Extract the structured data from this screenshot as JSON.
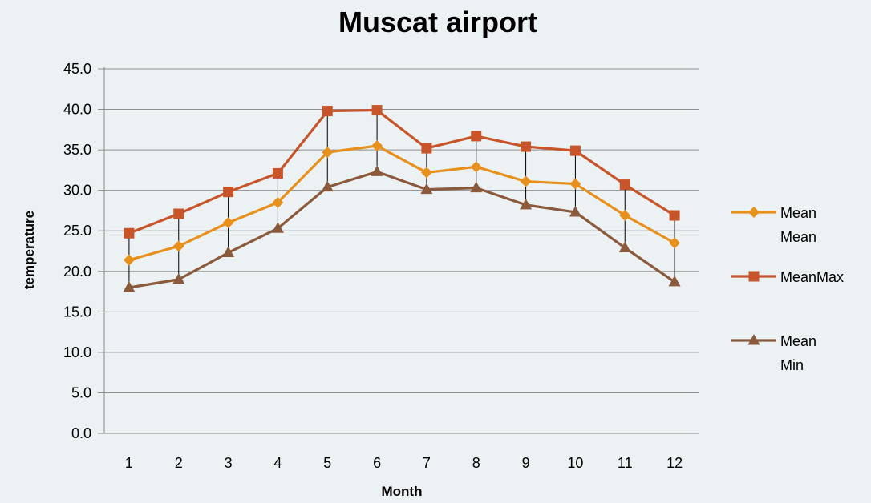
{
  "chart_data": {
    "type": "line",
    "title": "Muscat airport",
    "xlabel": "Month",
    "ylabel": "temperature",
    "categories": [
      "1",
      "2",
      "3",
      "4",
      "5",
      "6",
      "7",
      "8",
      "9",
      "10",
      "11",
      "12"
    ],
    "ylim": [
      0,
      45
    ],
    "yticks": [
      "0.0",
      "5.0",
      "10.0",
      "15.0",
      "20.0",
      "25.0",
      "30.0",
      "35.0",
      "40.0",
      "45.0"
    ],
    "grid": true,
    "legend_position": "right",
    "high_low_lines": true,
    "series": [
      {
        "name": "Mean Mean",
        "legend_lines": [
          "Mean",
          "Mean"
        ],
        "color": "#e8901c",
        "marker": "diamond",
        "values": [
          21.4,
          23.1,
          26.0,
          28.5,
          34.7,
          35.5,
          32.2,
          32.9,
          31.1,
          30.8,
          26.9,
          23.5
        ]
      },
      {
        "name": "MeanMax",
        "legend_lines": [
          "MeanMax"
        ],
        "color": "#c8552a",
        "marker": "square",
        "values": [
          24.7,
          27.1,
          29.8,
          32.1,
          39.8,
          39.9,
          35.2,
          36.7,
          35.4,
          34.9,
          30.7,
          26.9
        ]
      },
      {
        "name": "Mean Min",
        "legend_lines": [
          "Mean",
          "Min"
        ],
        "color": "#8b5a3c",
        "marker": "triangle",
        "values": [
          18.0,
          19.0,
          22.3,
          25.3,
          30.4,
          32.3,
          30.1,
          30.3,
          28.2,
          27.3,
          22.9,
          18.7
        ]
      }
    ]
  }
}
